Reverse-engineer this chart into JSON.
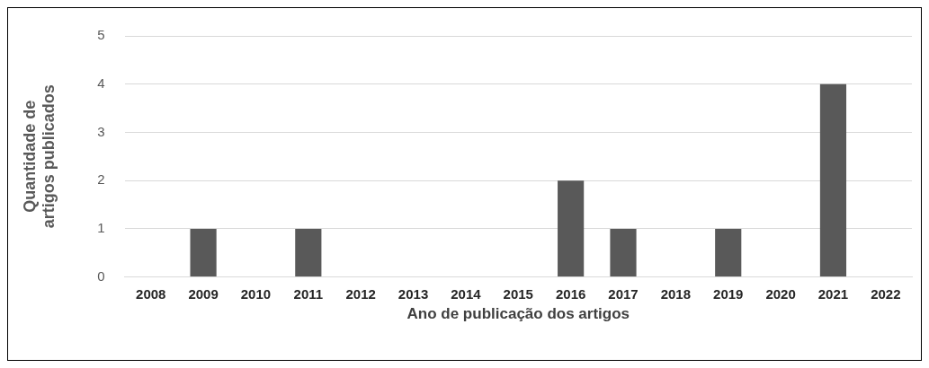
{
  "chart_data": {
    "type": "bar",
    "xlabel": "Ano de publicação dos artigos",
    "ylabel": "Quantidade de\nartigos publicados",
    "categories": [
      "2008",
      "2009",
      "2010",
      "2011",
      "2012",
      "2013",
      "2014",
      "2015",
      "2016",
      "2017",
      "2018",
      "2019",
      "2020",
      "2021",
      "2022"
    ],
    "values": [
      0,
      1,
      0,
      1,
      0,
      0,
      0,
      0,
      2,
      1,
      0,
      1,
      0,
      4,
      0
    ],
    "color": "#595959",
    "ylim": [
      0,
      5
    ],
    "yticks": [
      0,
      1,
      2,
      3,
      4,
      5
    ],
    "grid": "y",
    "legend": false
  }
}
